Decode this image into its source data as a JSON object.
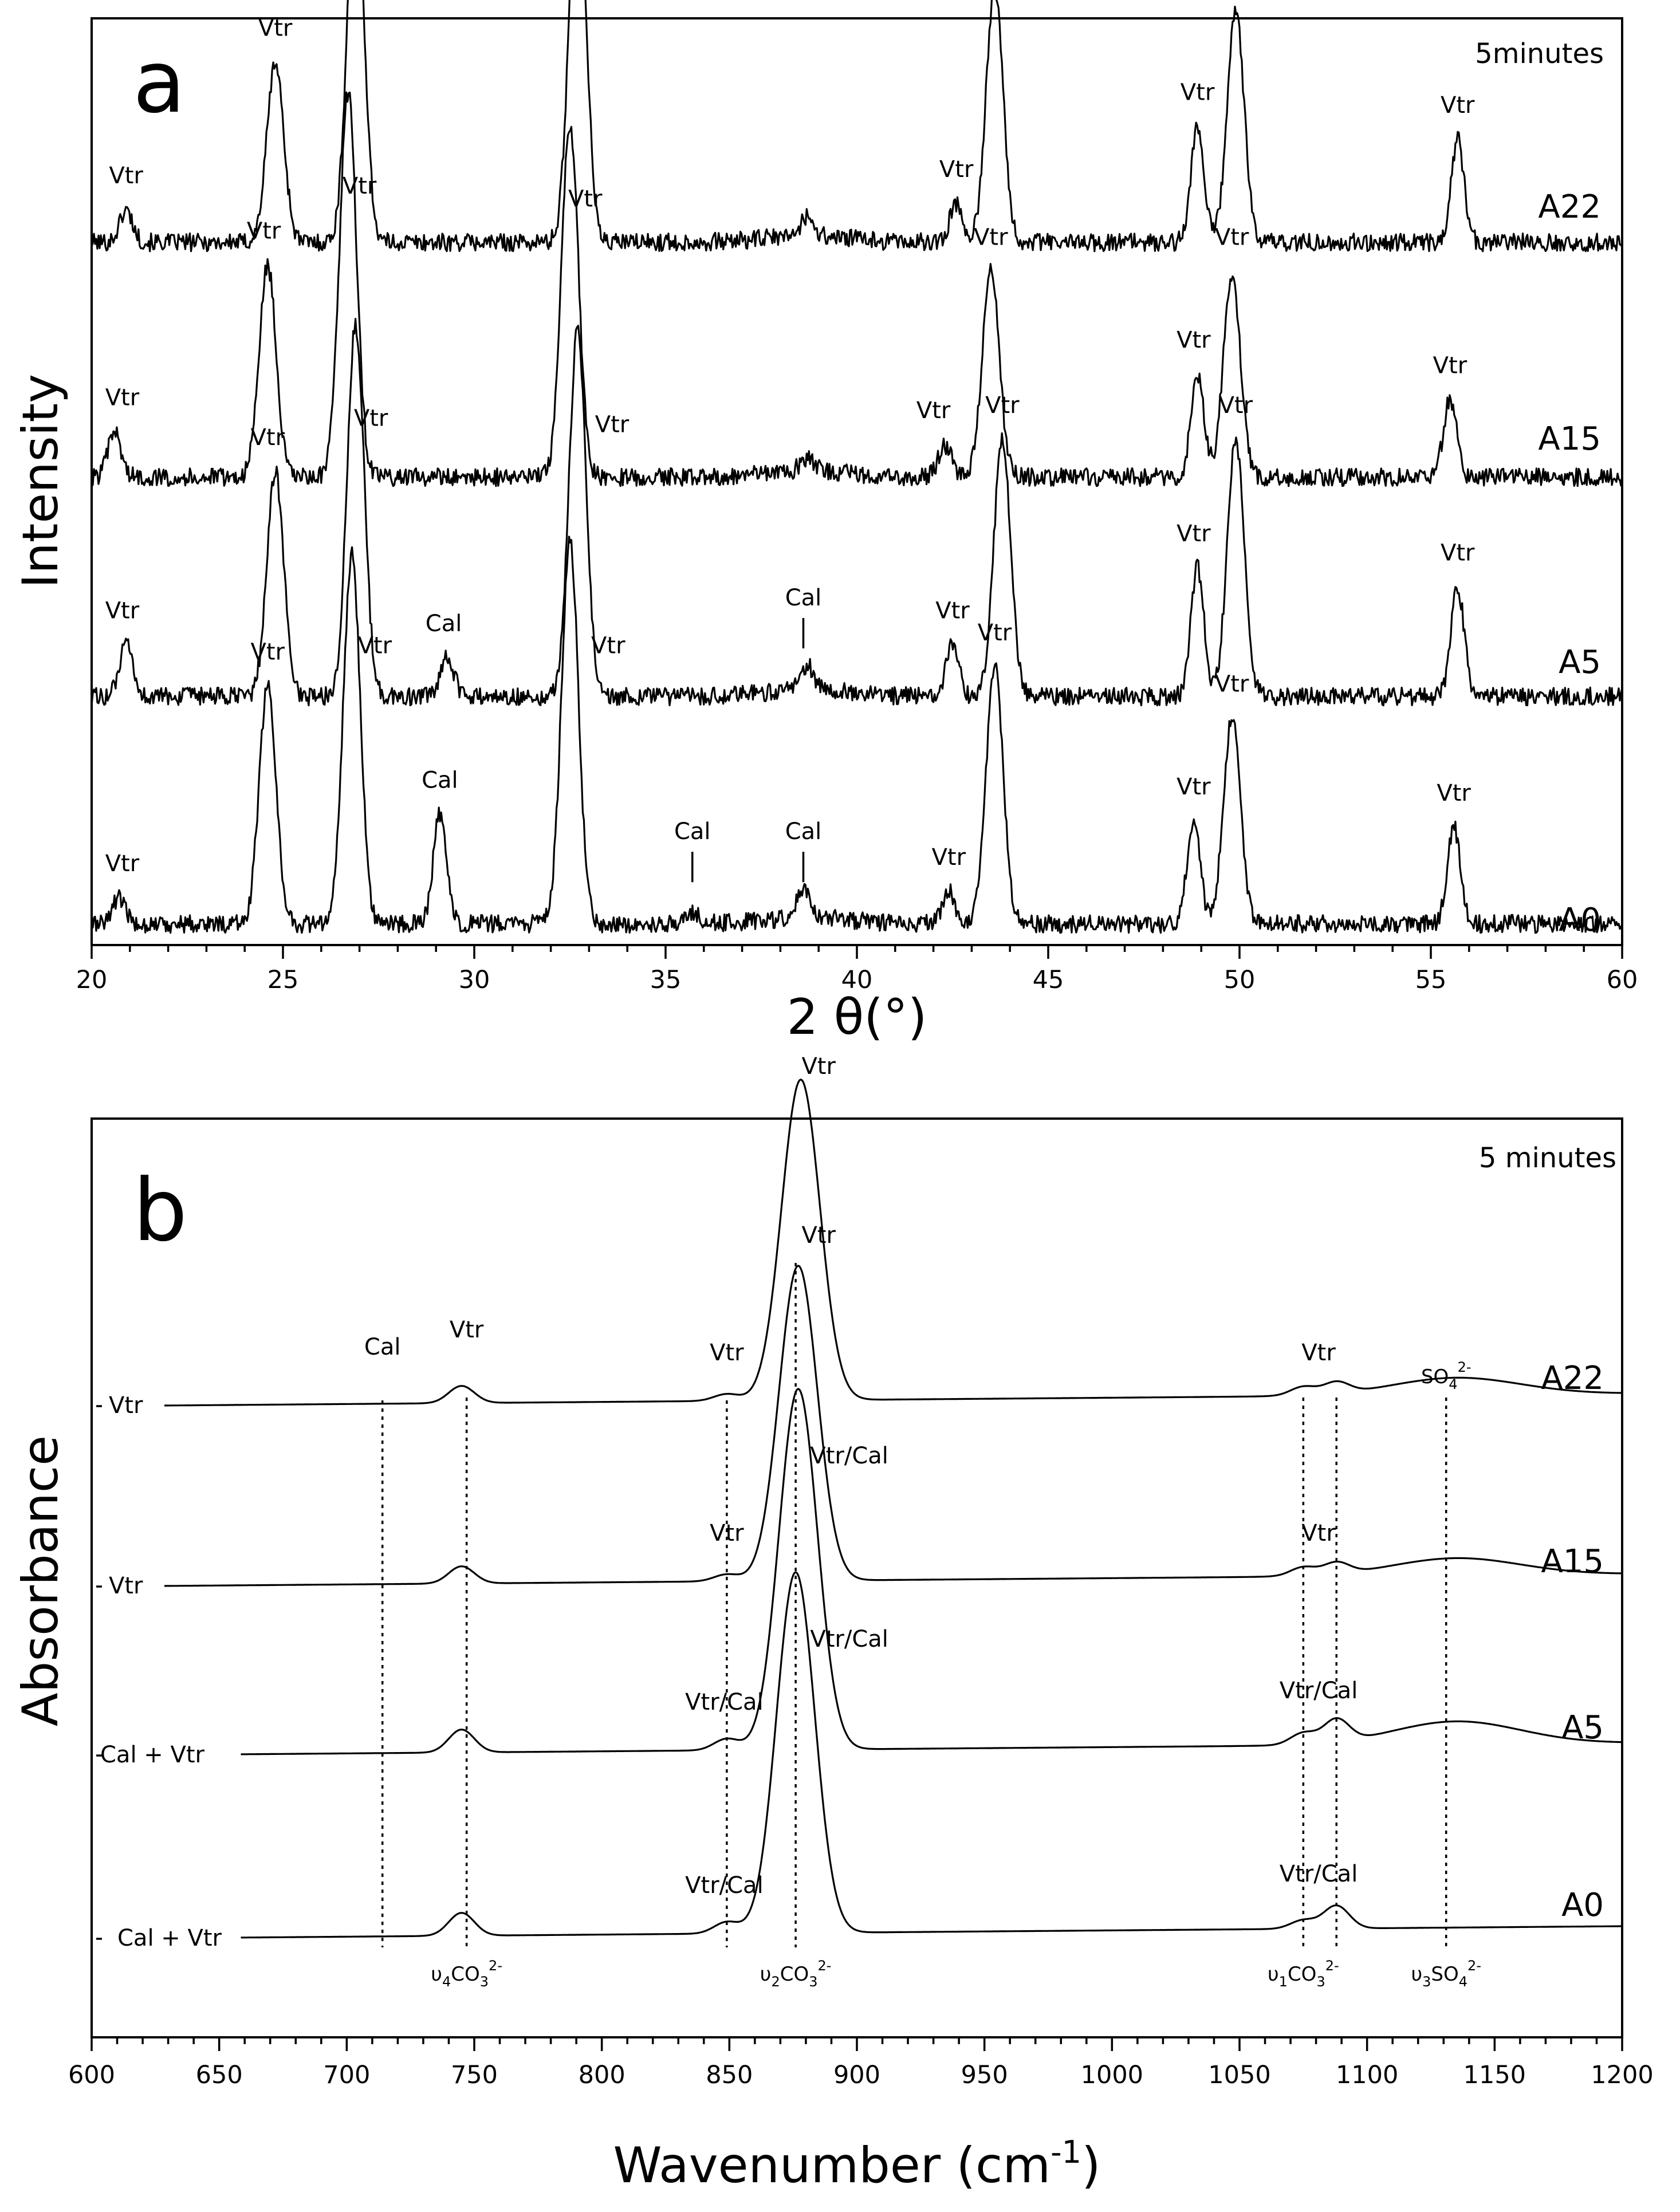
{
  "chart_data": [
    {
      "type": "line",
      "panel_letter": "a",
      "annotation": "5minutes",
      "xlabel": "2 θ(°)",
      "ylabel": "Intensity",
      "xlim": [
        20,
        60
      ],
      "xticks": [
        20,
        25,
        30,
        35,
        40,
        45,
        50,
        55,
        60
      ],
      "series": [
        {
          "name": "A22",
          "peaks": [
            [
              20.9,
              5
            ],
            [
              24.8,
              28
            ],
            [
              26.9,
              58
            ],
            [
              32.7,
              60
            ],
            [
              38.7,
              3
            ],
            [
              42.6,
              6
            ],
            [
              43.6,
              40
            ],
            [
              48.9,
              18
            ],
            [
              49.9,
              36
            ],
            [
              55.7,
              16
            ]
          ],
          "annotations": [
            {
              "label": "Vtr",
              "x": 20.9,
              "height": 10
            },
            {
              "label": "Vtr",
              "x": 24.8,
              "height": 33
            },
            {
              "label": "Vtr",
              "x": 26.9,
              "height": 63
            },
            {
              "label": "Vtr",
              "x": 32.7,
              "height": 60
            },
            {
              "label": "Vtr",
              "x": 42.6,
              "height": 11
            },
            {
              "label": "Vtr",
              "x": 43.6,
              "height": 45
            },
            {
              "label": "Vtr",
              "x": 48.9,
              "height": 23
            },
            {
              "label": "Vtr",
              "x": 49.9,
              "height": 46
            },
            {
              "label": "Vtr",
              "x": 55.7,
              "height": 21
            }
          ]
        },
        {
          "name": "A15",
          "peaks": [
            [
              20.6,
              7
            ],
            [
              24.6,
              33
            ],
            [
              26.7,
              60
            ],
            [
              32.5,
              55
            ],
            [
              38.7,
              2
            ],
            [
              42.3,
              5
            ],
            [
              43.5,
              32
            ],
            [
              48.9,
              16
            ],
            [
              49.8,
              32
            ],
            [
              55.5,
              12
            ]
          ],
          "annotations": [
            {
              "label": "Vtr",
              "x": 20.8,
              "height": 12
            },
            {
              "label": "Vtr",
              "x": 24.5,
              "height": 38
            },
            {
              "label": "Vtr",
              "x": 27.0,
              "height": 45
            },
            {
              "label": "Vtr",
              "x": 32.9,
              "height": 43
            },
            {
              "label": "Vtr",
              "x": 42.0,
              "height": 10
            },
            {
              "label": "Vtr",
              "x": 43.5,
              "height": 37
            },
            {
              "label": "Vtr",
              "x": 48.8,
              "height": 21
            },
            {
              "label": "Vtr",
              "x": 49.8,
              "height": 37
            },
            {
              "label": "Vtr",
              "x": 55.5,
              "height": 17
            }
          ]
        },
        {
          "name": "A5",
          "peaks": [
            [
              20.9,
              8
            ],
            [
              24.8,
              35
            ],
            [
              26.9,
              58
            ],
            [
              29.3,
              6
            ],
            [
              32.7,
              57
            ],
            [
              38.7,
              4
            ],
            [
              42.5,
              8
            ],
            [
              43.8,
              40
            ],
            [
              48.9,
              20
            ],
            [
              49.9,
              40
            ],
            [
              55.7,
              17
            ]
          ],
          "annotations": [
            {
              "label": "Vtr",
              "x": 20.8,
              "height": 13
            },
            {
              "label": "Vtr",
              "x": 24.6,
              "height": 40
            },
            {
              "label": "Vtr",
              "x": 27.3,
              "height": 43
            },
            {
              "label": "Cal",
              "x": 29.2,
              "height": 11
            },
            {
              "label": "Vtr",
              "x": 33.6,
              "height": 42
            },
            {
              "label": "Cal",
              "x": 38.6,
              "height": 15,
              "marker": true
            },
            {
              "label": "Vtr",
              "x": 42.5,
              "height": 13
            },
            {
              "label": "Vtr",
              "x": 43.8,
              "height": 45
            },
            {
              "label": "Vtr",
              "x": 48.8,
              "height": 25
            },
            {
              "label": "Vtr",
              "x": 49.9,
              "height": 45
            },
            {
              "label": "Vtr",
              "x": 55.7,
              "height": 22
            }
          ]
        },
        {
          "name": "A0",
          "peaks": [
            [
              20.7,
              4
            ],
            [
              24.6,
              37
            ],
            [
              26.8,
              58
            ],
            [
              29.1,
              17
            ],
            [
              32.5,
              60
            ],
            [
              35.7,
              2
            ],
            [
              38.6,
              4
            ],
            [
              42.4,
              5
            ],
            [
              43.6,
              40
            ],
            [
              48.8,
              16
            ],
            [
              49.8,
              32
            ],
            [
              55.6,
              15
            ]
          ],
          "annotations": [
            {
              "label": "Vtr",
              "x": 20.8,
              "height": 9
            },
            {
              "label": "Vtr",
              "x": 24.6,
              "height": 42
            },
            {
              "label": "Vtr",
              "x": 27.4,
              "height": 43
            },
            {
              "label": "Cal",
              "x": 29.1,
              "height": 22
            },
            {
              "label": "Vtr",
              "x": 33.5,
              "height": 43
            },
            {
              "label": "Cal",
              "x": 35.7,
              "height": 14,
              "marker": true
            },
            {
              "label": "Cal",
              "x": 38.6,
              "height": 14,
              "marker": true
            },
            {
              "label": "Vtr",
              "x": 42.4,
              "height": 10
            },
            {
              "label": "Vtr",
              "x": 43.6,
              "height": 45
            },
            {
              "label": "Vtr",
              "x": 48.8,
              "height": 21
            },
            {
              "label": "Vtr",
              "x": 49.8,
              "height": 37
            },
            {
              "label": "Vtr",
              "x": 55.6,
              "height": 20
            }
          ]
        }
      ]
    },
    {
      "type": "line",
      "panel_letter": "b",
      "annotation": "5 minutes",
      "xlabel_main": "Wavenumber (cm",
      "xlabel_sup": "-1",
      "xlabel_end": ")",
      "ylabel": "Absorbance",
      "xlim": [
        600,
        1200
      ],
      "xticks": [
        600,
        650,
        700,
        750,
        800,
        850,
        900,
        950,
        1000,
        1050,
        1100,
        1150,
        1200
      ],
      "series": [
        {
          "name": "A22",
          "left_label": "Vtr",
          "peaks": [
            [
              745,
              3
            ],
            [
              849,
              1.2
            ],
            [
              878,
              56
            ],
            [
              1075,
              1.5
            ],
            [
              1088,
              2
            ],
            [
              1135,
              3
            ]
          ],
          "annotations": [
            {
              "label": "Cal",
              "x": 714,
              "height": 9
            },
            {
              "label": "Vtr",
              "x": 747,
              "height": 12
            },
            {
              "label": "Vtr",
              "x": 849,
              "height": 8
            },
            {
              "label": "Vtr",
              "x": 885,
              "height": 58
            },
            {
              "label": "Vtr",
              "x": 1081,
              "height": 8
            }
          ]
        },
        {
          "name": "A15",
          "left_label": "Vtr",
          "peaks": [
            [
              745,
              3
            ],
            [
              849,
              1.2
            ],
            [
              877,
              55
            ],
            [
              1075,
              1.5
            ],
            [
              1088,
              2
            ],
            [
              1135,
              3
            ]
          ],
          "annotations": [
            {
              "label": "Vtr",
              "x": 849,
              "height": 8
            },
            {
              "label": "Vtr",
              "x": 885,
              "height": 60
            },
            {
              "label": "Vtr",
              "x": 1081,
              "height": 8
            }
          ]
        },
        {
          "name": "A5",
          "left_label": "Cal + Vtr",
          "peaks": [
            [
              745,
              4
            ],
            [
              849,
              2
            ],
            [
              877,
              63
            ],
            [
              1075,
              2
            ],
            [
              1088,
              4
            ],
            [
              1135,
              4
            ]
          ],
          "annotations": [
            {
              "label": "Vtr/Cal",
              "x": 848,
              "height": 8
            },
            {
              "label": "Vtr/Cal",
              "x": 897,
              "height": 51
            },
            {
              "label": "Vtr/Cal",
              "x": 1081,
              "height": 10
            }
          ]
        },
        {
          "name": "A0",
          "left_label": "Cal + Vtr",
          "peaks": [
            [
              745,
              4
            ],
            [
              849,
              2
            ],
            [
              876,
              63
            ],
            [
              1075,
              1.5
            ],
            [
              1088,
              4
            ]
          ],
          "annotations": [
            {
              "label": "Vtr/Cal",
              "x": 848,
              "height": 8
            },
            {
              "label": "Vtr/Cal",
              "x": 897,
              "height": 51
            },
            {
              "label": "Vtr/Cal",
              "x": 1081,
              "height": 10
            }
          ]
        }
      ],
      "reference_lines": [
        {
          "x": 714,
          "label_main": "",
          "sub": "",
          "charge": ""
        },
        {
          "x": 747,
          "label_main": "υ",
          "sub": "4",
          "ion": "CO",
          "ion_sub": "3",
          "charge": "2-"
        },
        {
          "x": 849,
          "label_main": "",
          "sub": "",
          "charge": ""
        },
        {
          "x": 876,
          "label_main": "υ",
          "sub": "2",
          "ion": "CO",
          "ion_sub": "3",
          "charge": "2-"
        },
        {
          "x": 1075,
          "label_main": "υ",
          "sub": "1",
          "ion": "CO",
          "ion_sub": "3",
          "charge": "2-"
        },
        {
          "x": 1088,
          "label_main": "",
          "sub": "",
          "charge": ""
        },
        {
          "x": 1131,
          "label_main": "υ",
          "sub": "3",
          "ion": "SO",
          "ion_sub": "4",
          "charge": "2-"
        }
      ],
      "top_labels": [
        {
          "x": 1131,
          "ion": "SO",
          "ion_sub": "4",
          "charge": "2-"
        }
      ]
    }
  ]
}
